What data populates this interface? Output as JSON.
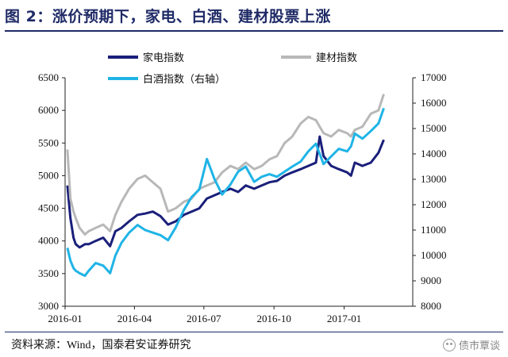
{
  "header": {
    "title": "图 2：涨价预期下，家电、白酒、建材股票上涨"
  },
  "footer": {
    "source_prefix": "资料来源：",
    "source_name": "Wind，国泰君安证券研究",
    "watermark": "债市覃谈"
  },
  "chart_data": {
    "type": "line",
    "title": "",
    "xlabel": "",
    "ylabel": "",
    "x_ticks": [
      "2016-01",
      "2016-04",
      "2016-07",
      "2016-10",
      "2017-01"
    ],
    "y_left": {
      "range": [
        3000,
        6500
      ],
      "ticks": [
        "3000",
        "3500",
        "4000",
        "4500",
        "5000",
        "5500",
        "6000",
        "6500"
      ]
    },
    "y_right": {
      "range": [
        8000,
        17000
      ],
      "ticks": [
        "8000",
        "9000",
        "10000",
        "11000",
        "12000",
        "13000",
        "14000",
        "15000",
        "16000",
        "17000"
      ]
    },
    "grid": false,
    "legend_position": "top",
    "series": [
      {
        "name": "家电指数",
        "axis": "left",
        "color": "#1a1f7a",
        "points": [
          [
            "2016-01-04",
            4850
          ],
          [
            "2016-01-08",
            4350
          ],
          [
            "2016-01-12",
            4050
          ],
          [
            "2016-01-15",
            3950
          ],
          [
            "2016-01-20",
            3900
          ],
          [
            "2016-01-27",
            3950
          ],
          [
            "2016-02-01",
            3950
          ],
          [
            "2016-02-10",
            4000
          ],
          [
            "2016-02-20",
            4050
          ],
          [
            "2016-02-29",
            3920
          ],
          [
            "2016-03-07",
            4150
          ],
          [
            "2016-03-15",
            4200
          ],
          [
            "2016-03-25",
            4300
          ],
          [
            "2016-04-05",
            4400
          ],
          [
            "2016-04-15",
            4420
          ],
          [
            "2016-04-25",
            4450
          ],
          [
            "2016-05-05",
            4380
          ],
          [
            "2016-05-15",
            4250
          ],
          [
            "2016-05-25",
            4300
          ],
          [
            "2016-06-05",
            4400
          ],
          [
            "2016-06-15",
            4450
          ],
          [
            "2016-06-25",
            4500
          ],
          [
            "2016-07-05",
            4650
          ],
          [
            "2016-07-15",
            4700
          ],
          [
            "2016-07-25",
            4750
          ],
          [
            "2016-08-05",
            4800
          ],
          [
            "2016-08-15",
            4750
          ],
          [
            "2016-08-25",
            4850
          ],
          [
            "2016-09-05",
            4800
          ],
          [
            "2016-09-15",
            4850
          ],
          [
            "2016-09-25",
            4900
          ],
          [
            "2016-10-05",
            4920
          ],
          [
            "2016-10-15",
            5000
          ],
          [
            "2016-10-25",
            5050
          ],
          [
            "2016-11-05",
            5100
          ],
          [
            "2016-11-15",
            5150
          ],
          [
            "2016-11-25",
            5200
          ],
          [
            "2016-11-30",
            5600
          ],
          [
            "2016-12-05",
            5300
          ],
          [
            "2016-12-15",
            5150
          ],
          [
            "2016-12-25",
            5100
          ],
          [
            "2017-01-05",
            5050
          ],
          [
            "2017-01-10",
            5000
          ],
          [
            "2017-01-15",
            5200
          ],
          [
            "2017-01-25",
            5150
          ],
          [
            "2017-02-05",
            5200
          ],
          [
            "2017-02-15",
            5350
          ],
          [
            "2017-02-22",
            5550
          ]
        ]
      },
      {
        "name": "建材指数",
        "axis": "left",
        "color": "#b8b8b8",
        "points": [
          [
            "2016-01-04",
            5400
          ],
          [
            "2016-01-08",
            4650
          ],
          [
            "2016-01-12",
            4450
          ],
          [
            "2016-01-15",
            4350
          ],
          [
            "2016-01-20",
            4200
          ],
          [
            "2016-01-27",
            4100
          ],
          [
            "2016-02-01",
            4150
          ],
          [
            "2016-02-10",
            4200
          ],
          [
            "2016-02-20",
            4250
          ],
          [
            "2016-02-29",
            4150
          ],
          [
            "2016-03-07",
            4400
          ],
          [
            "2016-03-15",
            4600
          ],
          [
            "2016-03-25",
            4800
          ],
          [
            "2016-04-05",
            4950
          ],
          [
            "2016-04-15",
            5000
          ],
          [
            "2016-04-25",
            4900
          ],
          [
            "2016-05-05",
            4800
          ],
          [
            "2016-05-15",
            4450
          ],
          [
            "2016-05-25",
            4500
          ],
          [
            "2016-06-05",
            4600
          ],
          [
            "2016-06-15",
            4650
          ],
          [
            "2016-06-25",
            4800
          ],
          [
            "2016-07-05",
            4850
          ],
          [
            "2016-07-15",
            4900
          ],
          [
            "2016-07-25",
            5050
          ],
          [
            "2016-08-05",
            5150
          ],
          [
            "2016-08-15",
            5100
          ],
          [
            "2016-08-25",
            5200
          ],
          [
            "2016-09-05",
            5100
          ],
          [
            "2016-09-15",
            5150
          ],
          [
            "2016-09-25",
            5250
          ],
          [
            "2016-10-05",
            5300
          ],
          [
            "2016-10-15",
            5500
          ],
          [
            "2016-10-25",
            5600
          ],
          [
            "2016-11-05",
            5800
          ],
          [
            "2016-11-15",
            5900
          ],
          [
            "2016-11-25",
            5850
          ],
          [
            "2016-11-30",
            5750
          ],
          [
            "2016-12-05",
            5650
          ],
          [
            "2016-12-15",
            5600
          ],
          [
            "2016-12-25",
            5700
          ],
          [
            "2017-01-05",
            5650
          ],
          [
            "2017-01-10",
            5600
          ],
          [
            "2017-01-15",
            5700
          ],
          [
            "2017-01-25",
            5750
          ],
          [
            "2017-02-05",
            5950
          ],
          [
            "2017-02-15",
            6000
          ],
          [
            "2017-02-22",
            6250
          ]
        ]
      },
      {
        "name": "白酒指数（右轴）",
        "axis": "right",
        "color": "#1fb4e6",
        "points": [
          [
            "2016-01-04",
            10300
          ],
          [
            "2016-01-08",
            9800
          ],
          [
            "2016-01-12",
            9500
          ],
          [
            "2016-01-15",
            9400
          ],
          [
            "2016-01-20",
            9300
          ],
          [
            "2016-01-27",
            9200
          ],
          [
            "2016-02-01",
            9400
          ],
          [
            "2016-02-10",
            9700
          ],
          [
            "2016-02-20",
            9600
          ],
          [
            "2016-02-29",
            9300
          ],
          [
            "2016-03-07",
            10000
          ],
          [
            "2016-03-15",
            10500
          ],
          [
            "2016-03-25",
            10900
          ],
          [
            "2016-04-05",
            11200
          ],
          [
            "2016-04-15",
            11000
          ],
          [
            "2016-04-25",
            10900
          ],
          [
            "2016-05-05",
            10800
          ],
          [
            "2016-05-15",
            10600
          ],
          [
            "2016-05-25",
            11100
          ],
          [
            "2016-06-05",
            11800
          ],
          [
            "2016-06-15",
            12300
          ],
          [
            "2016-06-25",
            12600
          ],
          [
            "2016-07-05",
            13800
          ],
          [
            "2016-07-15",
            13000
          ],
          [
            "2016-07-25",
            12400
          ],
          [
            "2016-08-05",
            12800
          ],
          [
            "2016-08-15",
            13300
          ],
          [
            "2016-08-25",
            13500
          ],
          [
            "2016-09-05",
            12900
          ],
          [
            "2016-09-15",
            13100
          ],
          [
            "2016-09-25",
            13200
          ],
          [
            "2016-10-05",
            13100
          ],
          [
            "2016-10-15",
            13300
          ],
          [
            "2016-10-25",
            13500
          ],
          [
            "2016-11-05",
            13700
          ],
          [
            "2016-11-15",
            14100
          ],
          [
            "2016-11-25",
            14400
          ],
          [
            "2016-11-30",
            14000
          ],
          [
            "2016-12-05",
            13600
          ],
          [
            "2016-12-15",
            13900
          ],
          [
            "2016-12-25",
            14200
          ],
          [
            "2017-01-05",
            14100
          ],
          [
            "2017-01-10",
            14300
          ],
          [
            "2017-01-15",
            14800
          ],
          [
            "2017-01-25",
            14600
          ],
          [
            "2017-02-05",
            14900
          ],
          [
            "2017-02-15",
            15200
          ],
          [
            "2017-02-22",
            15800
          ]
        ]
      }
    ]
  }
}
